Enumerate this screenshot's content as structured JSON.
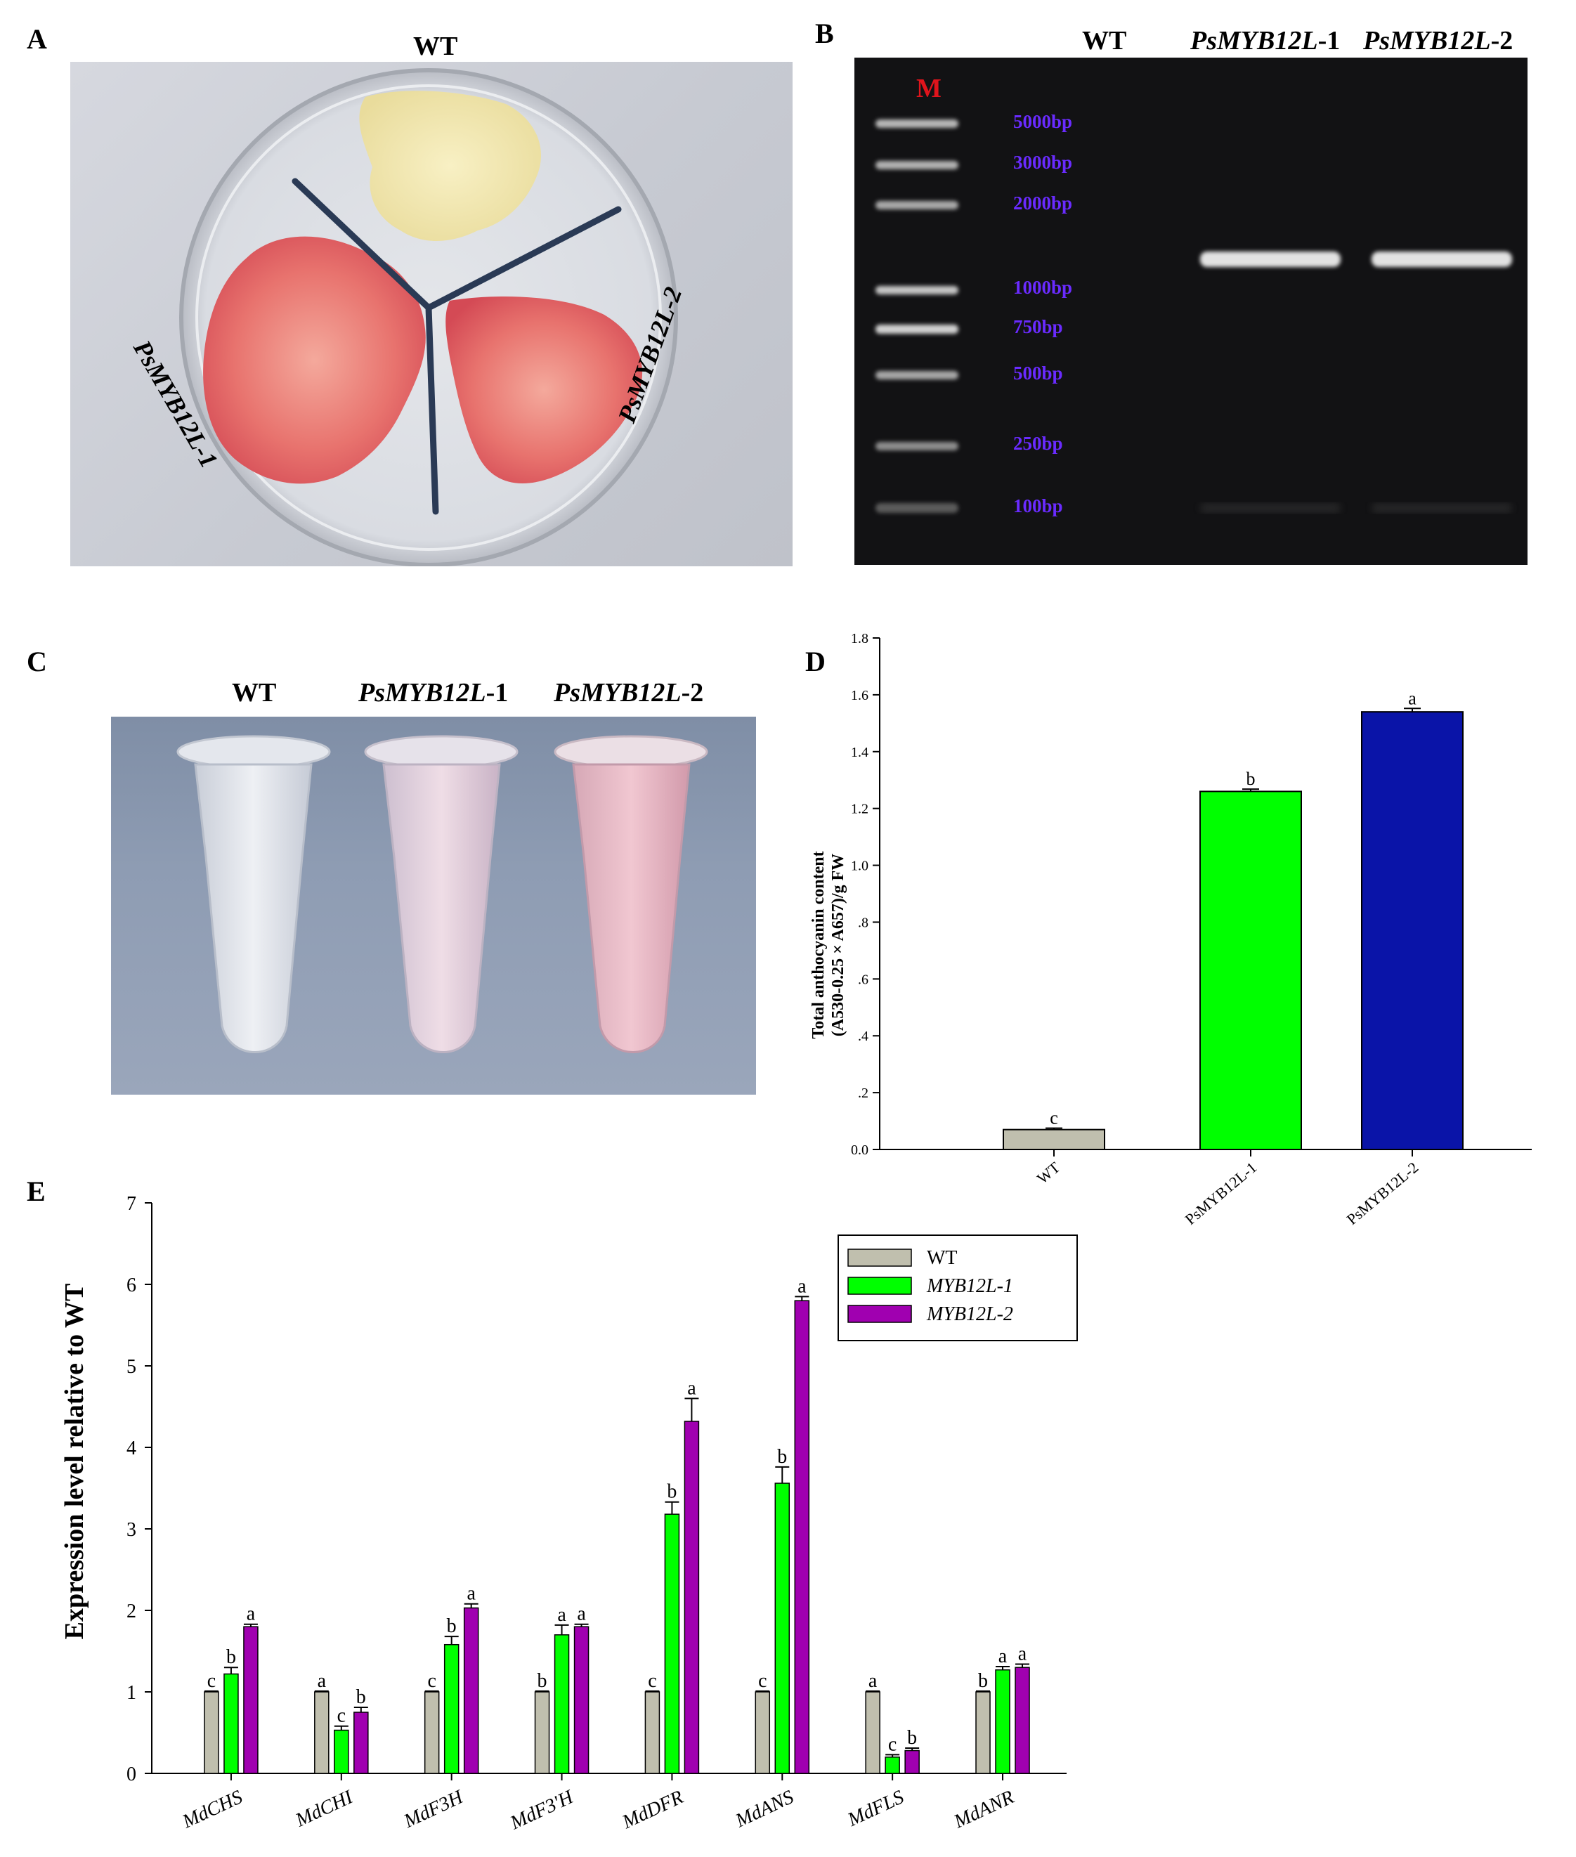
{
  "panels": {
    "a": {
      "letter": "A",
      "label_top": "WT",
      "label_left": "PsMYB12L-1",
      "label_right": "PsMYB12L-2"
    },
    "b": {
      "letter": "B",
      "lanes": [
        {
          "name": "WT",
          "suffix": ""
        },
        {
          "name": "PsMYB12L",
          "suffix": "-1"
        },
        {
          "name": "PsMYB12L",
          "suffix": "-2"
        }
      ],
      "marker": "M",
      "ladder": [
        "5000bp",
        "3000bp",
        "2000bp",
        "1000bp",
        "750bp",
        "500bp",
        "250bp",
        "100bp"
      ],
      "marker_color": "#e0141c",
      "ladder_color": "#6a2bff"
    },
    "c": {
      "letter": "C",
      "tubes": [
        {
          "name": "WT",
          "suffix": ""
        },
        {
          "name": "PsMYB12L",
          "suffix": "-1"
        },
        {
          "name": "PsMYB12L",
          "suffix": "-2"
        }
      ]
    },
    "d": {
      "letter": "D"
    },
    "e": {
      "letter": "E"
    }
  },
  "chart_data": [
    {
      "panel": "D",
      "type": "bar",
      "categories": [
        "WT",
        "PsMYB12L-1",
        "PsMYB12L-2"
      ],
      "values": [
        0.07,
        1.26,
        1.54
      ],
      "errors": [
        0.005,
        0.008,
        0.012
      ],
      "letters": [
        "c",
        "b",
        "a"
      ],
      "colors": [
        "#c0bfae",
        "#00ff00",
        "#0a14a8"
      ],
      "ylabel_line1": "Total anthocyanin content",
      "ylabel_line2": "(A530-0.25 × A657)/g FW",
      "ylim": [
        0,
        1.8
      ],
      "yticks": [
        0,
        0.2,
        0.4,
        0.6,
        0.8,
        1.0,
        1.2,
        1.4,
        1.6,
        1.8
      ],
      "ytick_labels": [
        "0.0",
        ".2",
        ".4",
        ".6",
        ".8",
        "1.0",
        "1.2",
        "1.4",
        "1.6",
        "1.8"
      ]
    },
    {
      "panel": "E",
      "type": "bar",
      "categories": [
        "MdCHS",
        "MdCHI",
        "MdF3H",
        "MdF3'H",
        "MdDFR",
        "MdANS",
        "MdFLS",
        "MdANR"
      ],
      "ylabel": "Expression level relative to WT",
      "ylim": [
        0,
        7
      ],
      "yticks": [
        0,
        1,
        2,
        3,
        4,
        5,
        6,
        7
      ],
      "legend_position": "top-right",
      "series": [
        {
          "name": "WT",
          "color": "#c0bfae",
          "values": [
            1,
            1,
            1,
            1,
            1,
            1,
            1,
            1
          ],
          "errors": [
            0.01,
            0.01,
            0.01,
            0.01,
            0.01,
            0.01,
            0.01,
            0.01
          ],
          "letters": [
            "c",
            "a",
            "c",
            "b",
            "c",
            "c",
            "a",
            "b"
          ]
        },
        {
          "name": "MYB12L-1",
          "color": "#00ff00",
          "values": [
            1.22,
            0.53,
            1.58,
            1.7,
            3.18,
            3.56,
            0.2,
            1.27
          ],
          "errors": [
            0.08,
            0.05,
            0.1,
            0.12,
            0.15,
            0.2,
            0.03,
            0.04
          ],
          "letters": [
            "b",
            "c",
            "b",
            "a",
            "b",
            "b",
            "c",
            "a"
          ]
        },
        {
          "name": "MYB12L-2",
          "color": "#a000b0",
          "values": [
            1.8,
            0.75,
            2.03,
            1.8,
            4.32,
            5.8,
            0.28,
            1.3
          ],
          "errors": [
            0.03,
            0.06,
            0.05,
            0.03,
            0.28,
            0.05,
            0.03,
            0.04
          ],
          "letters": [
            "a",
            "b",
            "a",
            "a",
            "a",
            "a",
            "b",
            "a"
          ]
        }
      ]
    }
  ]
}
